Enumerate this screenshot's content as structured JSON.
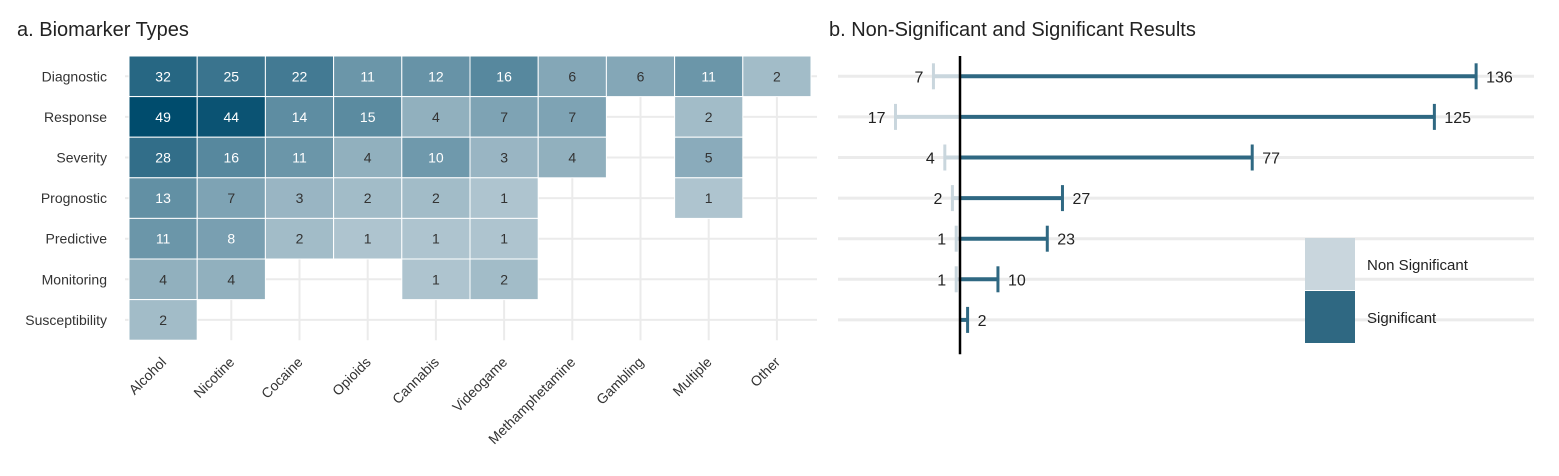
{
  "chart_data": [
    {
      "type": "heatmap",
      "title": "a. Biomarker Types",
      "x_categories": [
        "Alcohol",
        "Nicotine",
        "Cocaine",
        "Opioids",
        "Cannabis",
        "Videogame",
        "Methamphetamine",
        "Gambling",
        "Multiple",
        "Other"
      ],
      "y_categories": [
        "Diagnostic",
        "Response",
        "Severity",
        "Prognostic",
        "Predictive",
        "Monitoring",
        "Susceptibility"
      ],
      "values": [
        [
          32,
          25,
          22,
          11,
          12,
          16,
          6,
          6,
          11,
          2
        ],
        [
          49,
          44,
          14,
          15,
          4,
          7,
          7,
          null,
          2,
          null
        ],
        [
          28,
          16,
          11,
          4,
          10,
          3,
          4,
          null,
          5,
          null
        ],
        [
          13,
          7,
          3,
          2,
          2,
          1,
          null,
          null,
          1,
          null
        ],
        [
          11,
          8,
          2,
          1,
          1,
          1,
          null,
          null,
          null,
          null
        ],
        [
          4,
          4,
          null,
          null,
          1,
          2,
          null,
          null,
          null,
          null
        ],
        [
          2,
          null,
          null,
          null,
          null,
          null,
          null,
          null,
          null,
          null
        ]
      ],
      "color_scale": {
        "low": "#cbd8df",
        "high": "#004c6d"
      },
      "grid": true
    },
    {
      "type": "bar",
      "orientation": "horizontal-diverging",
      "title": "b. Non-Significant and Significant Results",
      "categories": [
        "Diagnostic",
        "Response",
        "Severity",
        "Prognostic",
        "Predictive",
        "Monitoring",
        "Susceptibility"
      ],
      "series": [
        {
          "name": "Non Significant",
          "color": "#c9d6dd",
          "values": [
            7,
            17,
            4,
            2,
            1,
            1,
            0
          ]
        },
        {
          "name": "Significant",
          "color": "#2f6882",
          "values": [
            136,
            125,
            77,
            27,
            23,
            10,
            2
          ]
        }
      ],
      "xlim": [
        -26,
        150
      ],
      "legend": "bottom-right",
      "grid": true
    }
  ]
}
